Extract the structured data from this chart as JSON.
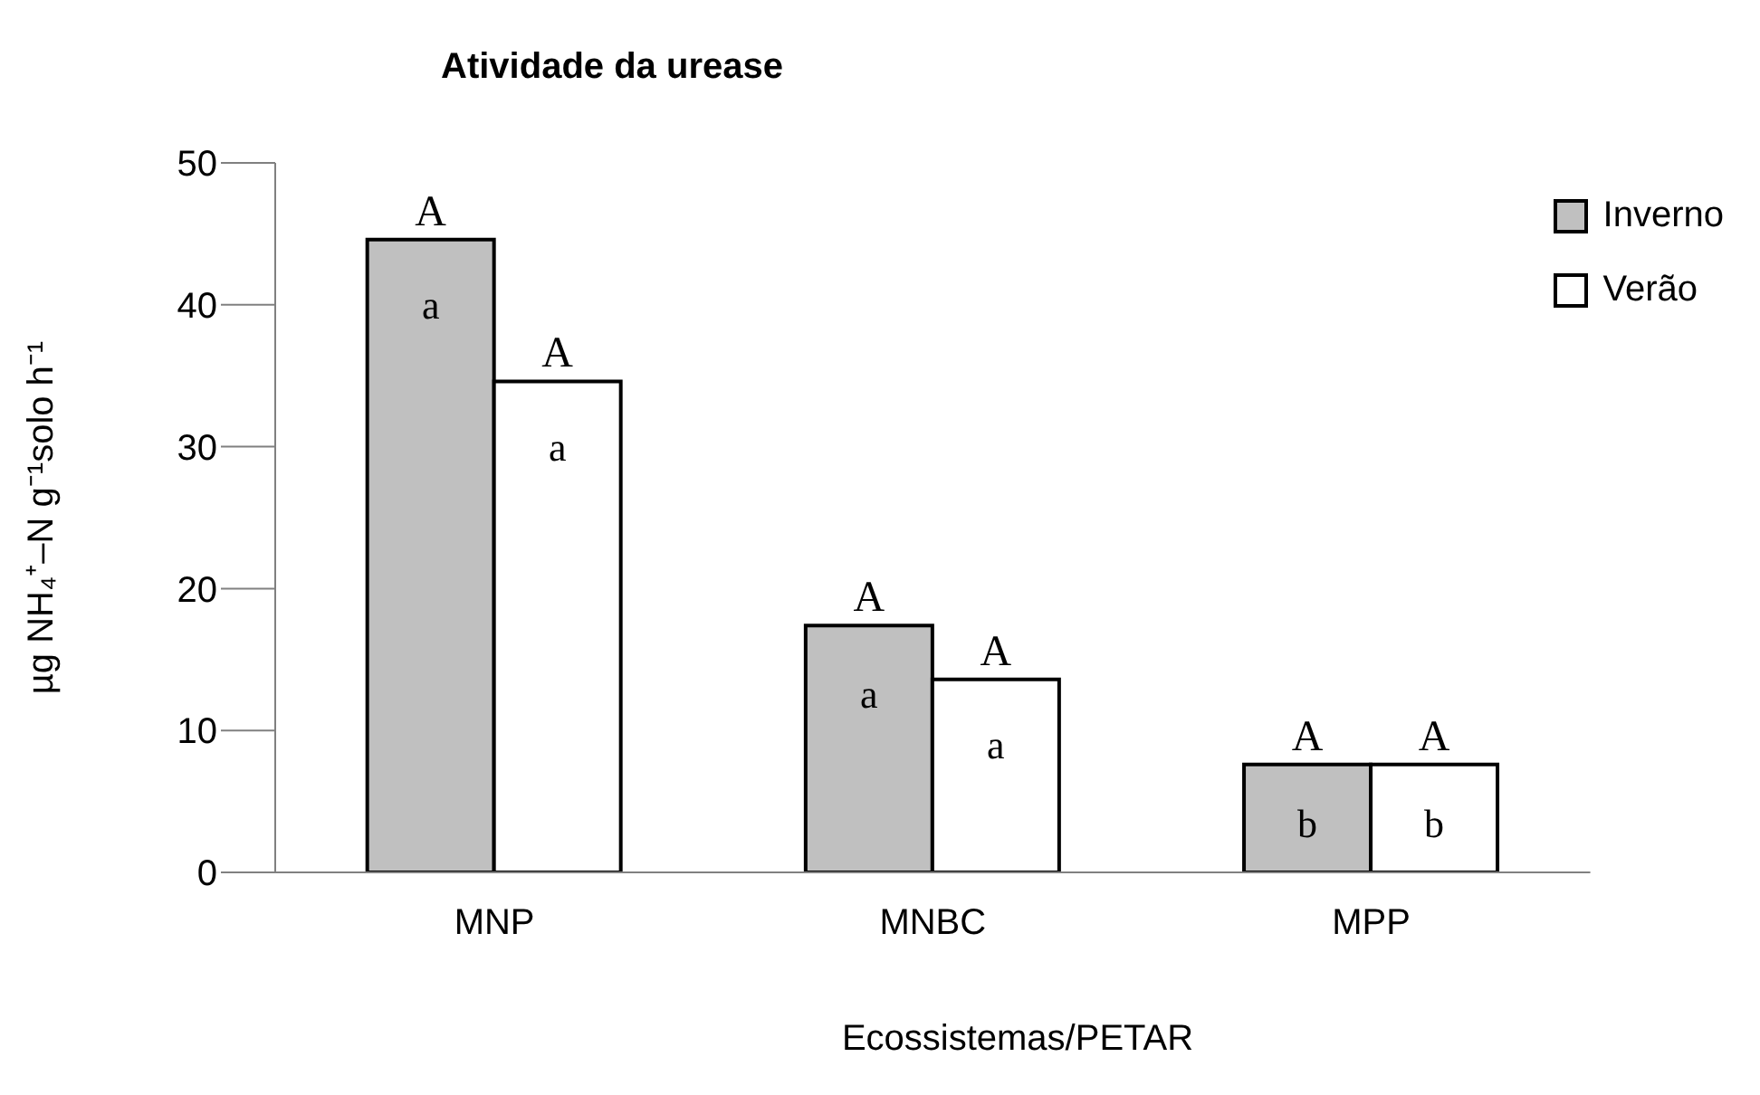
{
  "chart_data": {
    "type": "bar",
    "title": "Atividade da urease",
    "xlabel": "Ecossistemas/PETAR",
    "ylabel": "µg NH₄⁺–N g⁻¹solo h⁻¹",
    "categories": [
      "MNP",
      "MNBC",
      "MPP"
    ],
    "series": [
      {
        "name": "Inverno",
        "color": "#c0c0c0",
        "values": [
          44.6,
          17.4,
          7.6
        ],
        "value_labels": [
          "A",
          "A",
          "A"
        ]
      },
      {
        "name": "Verão",
        "color": "#ffffff",
        "values": [
          34.6,
          13.6,
          7.6
        ],
        "value_labels": [
          "A",
          "A",
          "A"
        ]
      }
    ],
    "annotations": [
      {
        "text": "a",
        "x": "MNP",
        "y": 40
      },
      {
        "text": "a",
        "x": "MNP",
        "y": 30
      },
      {
        "text": "a",
        "x": "MNBC",
        "y": 12.6
      },
      {
        "text": "a",
        "x": "MNBC",
        "y": 9
      },
      {
        "text": "b",
        "x": "MPP",
        "y": 3.5
      },
      {
        "text": "b",
        "x": "MPP",
        "y": 3.5
      }
    ],
    "ylim": [
      0,
      50
    ],
    "yticks": [
      0,
      10,
      20,
      30,
      40,
      50
    ],
    "grid": false,
    "legend": "top right"
  }
}
